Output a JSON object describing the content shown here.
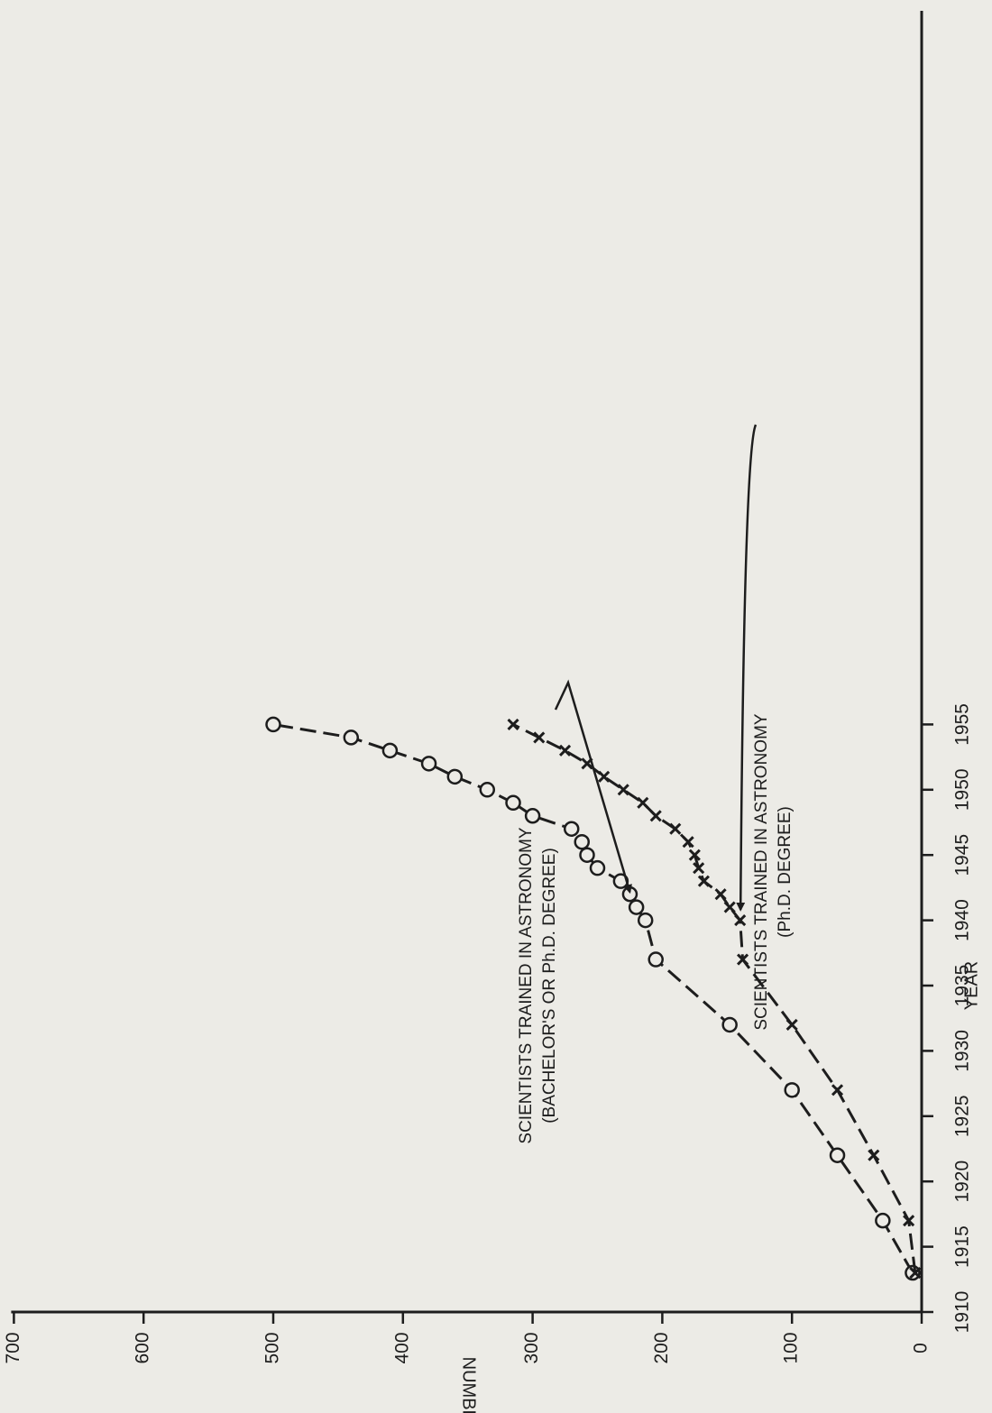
{
  "chart_data": {
    "type": "line",
    "orientation": "rotated-90-counterclockwise",
    "xlabel": "YEAR",
    "ylabel": "NUMBER",
    "xlim": [
      1910,
      1960
    ],
    "ylim": [
      0,
      700
    ],
    "x_ticks": [
      1910,
      1915,
      1920,
      1925,
      1930,
      1935,
      1940,
      1945,
      1950,
      1955
    ],
    "y_ticks": [
      0,
      100,
      200,
      300,
      400,
      500,
      600,
      700
    ],
    "grid": false,
    "legend": "none",
    "series": [
      {
        "marker": "circle",
        "x": [
          1913,
          1917,
          1922,
          1927,
          1932,
          1937,
          1940,
          1941,
          1942,
          1943,
          1944,
          1945,
          1946,
          1947,
          1948,
          1949,
          1950,
          1951,
          1952,
          1953,
          1954,
          1955
        ],
        "y": [
          7,
          30,
          65,
          100,
          148,
          205,
          213,
          220,
          225,
          232,
          250,
          258,
          262,
          270,
          300,
          315,
          335,
          360,
          380,
          410,
          440,
          500
        ]
      },
      {
        "marker": "cross",
        "x": [
          1913,
          1917,
          1922,
          1927,
          1932,
          1937,
          1940,
          1941,
          1942,
          1943,
          1944,
          1945,
          1946,
          1947,
          1948,
          1949,
          1950,
          1951,
          1952,
          1953,
          1954,
          1955
        ],
        "y": [
          5,
          10,
          37,
          65,
          100,
          138,
          140,
          148,
          155,
          168,
          172,
          175,
          180,
          190,
          205,
          215,
          230,
          245,
          258,
          275,
          295,
          315
        ]
      }
    ],
    "annotations": [
      {
        "lines": [
          "SCIENTISTS TRAINED IN ASTRONOMY",
          "(BACHELOR'S OR Ph.D. DEGREE)"
        ],
        "points_to": [
          1943,
          232
        ]
      },
      {
        "lines": [
          "SCIENTISTS TRAINED IN ASTRONOMY",
          "(Ph.D. DEGREE)"
        ],
        "points_to": [
          1941.5,
          148
        ]
      }
    ]
  }
}
